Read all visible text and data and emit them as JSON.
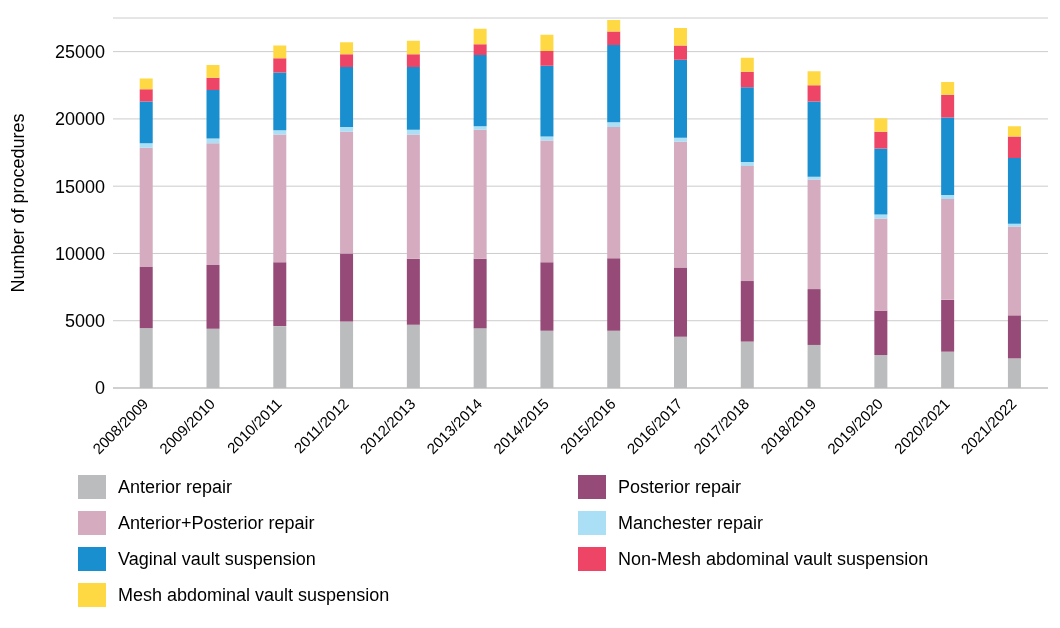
{
  "chart_data": {
    "type": "bar",
    "stacked": true,
    "ylabel": "Number of procedures",
    "categories": [
      "2008/2009",
      "2009/2010",
      "2010/2011",
      "2011/2012",
      "2012/2013",
      "2013/2014",
      "2014/2015",
      "2015/2016",
      "2016/2017",
      "2017/2018",
      "2018/2019",
      "2019/2020",
      "2020/2021",
      "2021/2022"
    ],
    "series": [
      {
        "name": "Anterior repair",
        "color": "#bbbcbe",
        "values": [
          4450,
          4400,
          4600,
          4950,
          4700,
          4450,
          4250,
          4250,
          3800,
          3450,
          3200,
          2450,
          2700,
          2200
        ]
      },
      {
        "name": "Posterior repair",
        "color": "#954a77",
        "values": [
          4550,
          4750,
          4750,
          5050,
          4900,
          5150,
          5100,
          5400,
          5150,
          4500,
          4150,
          3300,
          3850,
          3200
        ]
      },
      {
        "name": "Anterior+Posterior repair",
        "color": "#d4abbf",
        "values": [
          8850,
          9050,
          9500,
          9050,
          9250,
          9600,
          9050,
          9750,
          9350,
          8550,
          8150,
          6850,
          7500,
          6600
        ]
      },
      {
        "name": "Manchester repair",
        "color": "#aadff5",
        "values": [
          350,
          350,
          300,
          350,
          350,
          250,
          300,
          350,
          300,
          300,
          200,
          300,
          300,
          200
        ]
      },
      {
        "name": "Vaginal vault suspension",
        "color": "#1a8fcf",
        "values": [
          3100,
          3600,
          4300,
          4450,
          4650,
          5300,
          5250,
          5750,
          5800,
          5550,
          5600,
          4900,
          5750,
          4900
        ]
      },
      {
        "name": "Non-Mesh abdominal vault suspension",
        "color": "#ee4466",
        "values": [
          900,
          900,
          1050,
          950,
          950,
          800,
          1100,
          1000,
          1050,
          1150,
          1200,
          1250,
          1700,
          1600
        ]
      },
      {
        "name": "Mesh abdominal vault suspension",
        "color": "#fed944",
        "values": [
          800,
          950,
          950,
          900,
          1000,
          1150,
          1200,
          850,
          1300,
          1050,
          1050,
          1000,
          950,
          750
        ]
      }
    ],
    "ylim": [
      0,
      27500
    ],
    "yticks": [
      0,
      5000,
      10000,
      15000,
      20000,
      25000
    ],
    "grid": "y",
    "legend": "bottom"
  }
}
